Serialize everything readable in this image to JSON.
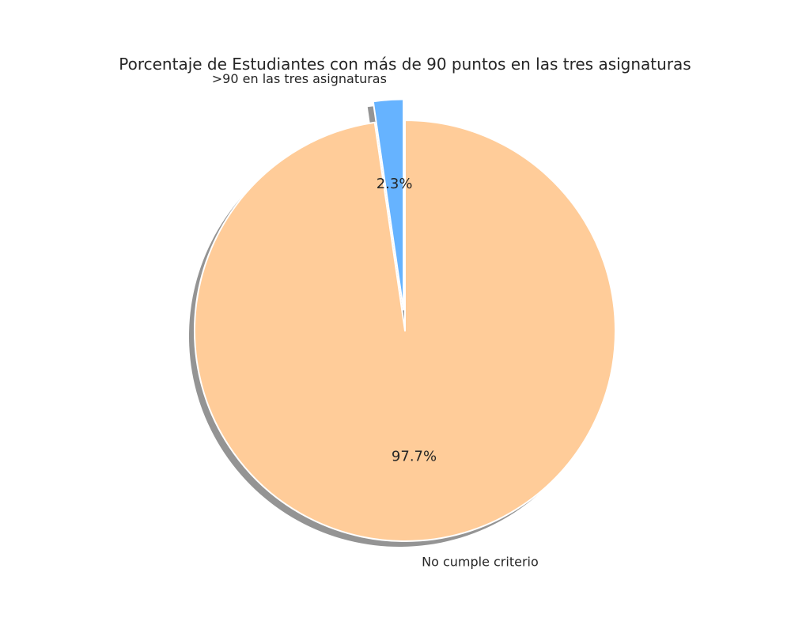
{
  "chart_data": {
    "type": "pie",
    "title": "Porcentaje de Estudiantes con más de 90 puntos en las tres asignaturas",
    "labels": [
      ">90 en las tres asignaturas",
      "No cumple criterio"
    ],
    "values": [
      2.3,
      97.7
    ],
    "percent_labels": [
      "2.3%",
      "97.7%"
    ],
    "colors": [
      "#66b3ff",
      "#ffcc99"
    ],
    "explode": [
      0.1,
      0
    ],
    "start_angle_deg": 90,
    "counterclockwise": true,
    "shadow": true
  }
}
